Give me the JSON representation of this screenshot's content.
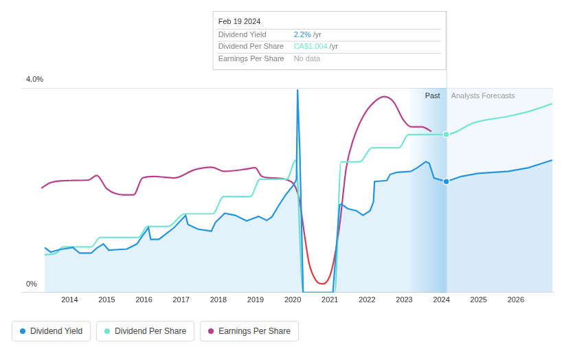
{
  "chart_data": {
    "type": "line",
    "xlim": [
      2012.7,
      2027
    ],
    "xticks": [
      2014,
      2015,
      2016,
      2017,
      2018,
      2019,
      2020,
      2021,
      2022,
      2023,
      2024,
      2025,
      2026
    ],
    "ylim": [
      0,
      4
    ],
    "yticks": [
      {
        "value": 0,
        "label": "0%"
      },
      {
        "value": 4,
        "label": "4.0%"
      }
    ],
    "y2lim": [
      0,
      1.3
    ],
    "grid": true,
    "series": [
      {
        "name": "Dividend Yield",
        "type": "area",
        "color": "#2394df",
        "x": [
          2013.33,
          2013.49,
          2013.73,
          2014.09,
          2014.27,
          2014.58,
          2014.73,
          2014.91,
          2015.05,
          2015.54,
          2015.81,
          2015.96,
          2016.12,
          2016.18,
          2016.4,
          2016.81,
          2017.12,
          2017.18,
          2017.45,
          2017.81,
          2017.92,
          2018.17,
          2018.45,
          2018.76,
          2019.08,
          2019.3,
          2019.44,
          2019.63,
          2019.81,
          2020.03,
          2020.1,
          2020.13,
          2020.19,
          2020.28,
          2021.08,
          2021.26,
          2021.31,
          2021.48,
          2021.71,
          2021.89,
          2022.08,
          2022.17,
          2022.2,
          2022.53,
          2022.62,
          2022.8,
          2023.18,
          2023.35,
          2023.58,
          2023.67,
          2023.8,
          2024.13,
          2024.53,
          2024.98,
          2025.8,
          2026.34,
          2026.98
        ],
        "values": [
          0.88,
          0.79,
          0.84,
          0.88,
          0.77,
          0.77,
          0.87,
          0.95,
          0.83,
          0.85,
          0.95,
          1.11,
          1.27,
          1.04,
          1.04,
          1.27,
          1.51,
          1.33,
          1.24,
          1.2,
          1.37,
          1.55,
          1.51,
          1.4,
          1.49,
          1.41,
          1.48,
          1.71,
          1.91,
          2.11,
          2.21,
          3.97,
          2.77,
          0,
          0,
          1.71,
          1.73,
          1.64,
          1.6,
          1.51,
          1.6,
          1.77,
          2.17,
          2.19,
          2.31,
          2.35,
          2.37,
          2.44,
          2.56,
          2.53,
          2.24,
          2.17,
          2.27,
          2.33,
          2.37,
          2.44,
          2.59
        ]
      },
      {
        "name": "Dividend Per Share",
        "type": "line",
        "color": "#72e6d2",
        "axis": "y2",
        "x": [
          2013.33,
          2013.64,
          2013.82,
          2014.58,
          2014.82,
          2015.85,
          2016.09,
          2016.65,
          2017.09,
          2017.85,
          2018.14,
          2018.86,
          2019.12,
          2019.84,
          2020.08,
          2020.28,
          2021.13,
          2021.3,
          2021.8,
          2022.13,
          2022.86,
          2023.11,
          2024.13,
          2024.89,
          2025.8,
          2026.34,
          2026.98
        ],
        "values": [
          0.24,
          0.25,
          0.29,
          0.29,
          0.35,
          0.35,
          0.42,
          0.42,
          0.5,
          0.5,
          0.61,
          0.61,
          0.72,
          0.72,
          0.84,
          0,
          0,
          0.83,
          0.83,
          0.92,
          0.92,
          1.004,
          1.004,
          1.08,
          1.12,
          1.15,
          1.2
        ]
      },
      {
        "name": "Earnings Per Share",
        "type": "line",
        "color": "#b5418a",
        "x": [
          2013.24,
          2013.49,
          2014.0,
          2014.51,
          2014.73,
          2015.0,
          2015.45,
          2015.72,
          2015.96,
          2016.27,
          2016.81,
          2017.36,
          2017.81,
          2018.17,
          2018.72,
          2018.99,
          2019.17,
          2019.44,
          2019.95,
          2020.17,
          2020.32,
          2020.44,
          2020.62,
          2020.81,
          2020.99,
          2021.11,
          2021.26,
          2021.44,
          2021.62,
          2021.89,
          2022.17,
          2022.46,
          2022.71,
          2022.98,
          2023.18,
          2023.47,
          2023.73
        ],
        "values": [
          2.04,
          2.15,
          2.19,
          2.2,
          2.29,
          2.03,
          1.91,
          1.91,
          2.24,
          2.27,
          2.24,
          2.4,
          2.45,
          2.37,
          2.41,
          2.44,
          2.27,
          2.24,
          2.17,
          1.84,
          1.11,
          0.57,
          0.24,
          0.17,
          0.31,
          0.64,
          1.31,
          2.44,
          2.97,
          3.44,
          3.71,
          3.83,
          3.73,
          3.37,
          3.24,
          3.24,
          3.15
        ],
        "colors": [
          "#b5418a",
          "#b5418a",
          "#b5418a",
          "#b5418a",
          "#b5418a",
          "#b5418a",
          "#b5418a",
          "#b5418a",
          "#b5418a",
          "#b5418a",
          "#b5418a",
          "#b5418a",
          "#b5418a",
          "#b5418a",
          "#b5418a",
          "#b5418a",
          "#b5418a",
          "#b5418a",
          "#b5418a",
          "#b5418a",
          "#e0393e",
          "#e0393e",
          "#e0393e",
          "#e0393e",
          "#e0393e",
          "#e0393e",
          "#b5418a",
          "#b5418a",
          "#b5418a",
          "#b5418a",
          "#b5418a",
          "#b5418a",
          "#b5418a",
          "#b5418a",
          "#b5418a",
          "#b5418a",
          "#b5418a"
        ]
      }
    ],
    "annotations": [
      {
        "label": "Past",
        "from": 2023.13,
        "to": 2024.13
      },
      {
        "label": "Analysts Forecasts",
        "from": 2024.13,
        "to": 2027
      }
    ],
    "tooltip": {
      "x": 2024.13,
      "title": "Feb 19 2024",
      "rows": [
        {
          "label": "Dividend Yield",
          "value": "2.2%",
          "unit": "/yr"
        },
        {
          "label": "Dividend Per Share",
          "value": "CA$1.004",
          "unit": "/yr"
        },
        {
          "label": "Earnings Per Share",
          "value": "No data"
        }
      ]
    }
  }
}
